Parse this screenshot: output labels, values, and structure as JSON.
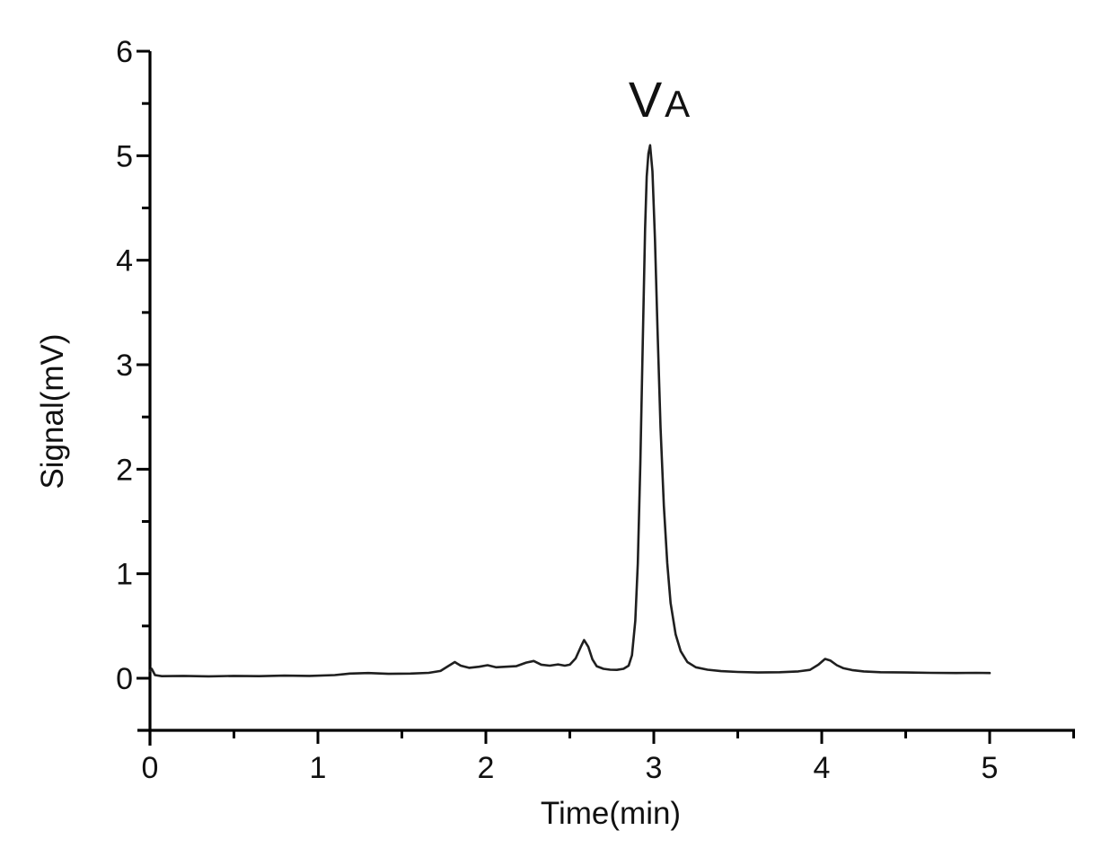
{
  "figure": {
    "background": "#ffffff"
  },
  "chart_data": {
    "type": "line",
    "title": "",
    "xlabel": "Time(min)",
    "ylabel": "Signal(mV)",
    "xlim": [
      0,
      5.5
    ],
    "ylim": [
      -0.5,
      6
    ],
    "grid": false,
    "legend": null,
    "line_color": "#1f1f1f",
    "axis_color": "#000000",
    "x_major_ticks": [
      0,
      1,
      2,
      3,
      4,
      5
    ],
    "x_minor_ticks": [
      0.5,
      1.5,
      2.5,
      3.5,
      4.5,
      5.5
    ],
    "y_major_ticks": [
      0,
      1,
      2,
      3,
      4,
      5,
      6
    ],
    "y_minor_ticks": [
      0.5,
      1.5,
      2.5,
      3.5,
      4.5,
      5.5
    ],
    "annotation": {
      "text_large": "V",
      "text_small": "A",
      "at_time_min": 3.0
    },
    "peaks": [
      {
        "time_min": 1.8,
        "height_mV": 0.16
      },
      {
        "time_min": 2.3,
        "height_mV": 0.17
      },
      {
        "time_min": 2.6,
        "height_mV": 0.37
      },
      {
        "time_min": 3.0,
        "height_mV": 5.1,
        "label": "VA"
      },
      {
        "time_min": 4.0,
        "height_mV": 0.19
      }
    ],
    "series": [
      {
        "name": "Signal",
        "points": [
          [
            0.0,
            0.07
          ],
          [
            0.01,
            0.09
          ],
          [
            0.03,
            0.03
          ],
          [
            0.07,
            0.02
          ],
          [
            0.2,
            0.022
          ],
          [
            0.35,
            0.018
          ],
          [
            0.5,
            0.022
          ],
          [
            0.65,
            0.02
          ],
          [
            0.8,
            0.025
          ],
          [
            0.95,
            0.022
          ],
          [
            1.1,
            0.03
          ],
          [
            1.19,
            0.045
          ],
          [
            1.3,
            0.05
          ],
          [
            1.42,
            0.042
          ],
          [
            1.55,
            0.045
          ],
          [
            1.66,
            0.052
          ],
          [
            1.73,
            0.07
          ],
          [
            1.78,
            0.12
          ],
          [
            1.815,
            0.155
          ],
          [
            1.85,
            0.12
          ],
          [
            1.9,
            0.1
          ],
          [
            1.96,
            0.11
          ],
          [
            2.01,
            0.125
          ],
          [
            2.06,
            0.105
          ],
          [
            2.12,
            0.11
          ],
          [
            2.18,
            0.115
          ],
          [
            2.24,
            0.15
          ],
          [
            2.285,
            0.165
          ],
          [
            2.33,
            0.13
          ],
          [
            2.38,
            0.12
          ],
          [
            2.43,
            0.132
          ],
          [
            2.47,
            0.12
          ],
          [
            2.5,
            0.13
          ],
          [
            2.535,
            0.19
          ],
          [
            2.565,
            0.3
          ],
          [
            2.585,
            0.365
          ],
          [
            2.61,
            0.3
          ],
          [
            2.635,
            0.18
          ],
          [
            2.66,
            0.115
          ],
          [
            2.7,
            0.09
          ],
          [
            2.74,
            0.082
          ],
          [
            2.78,
            0.08
          ],
          [
            2.82,
            0.09
          ],
          [
            2.85,
            0.12
          ],
          [
            2.87,
            0.22
          ],
          [
            2.89,
            0.55
          ],
          [
            2.905,
            1.1
          ],
          [
            2.92,
            2.05
          ],
          [
            2.935,
            3.25
          ],
          [
            2.948,
            4.3
          ],
          [
            2.958,
            4.8
          ],
          [
            2.968,
            5.02
          ],
          [
            2.978,
            5.1
          ],
          [
            2.992,
            4.85
          ],
          [
            3.007,
            4.2
          ],
          [
            3.022,
            3.35
          ],
          [
            3.04,
            2.4
          ],
          [
            3.06,
            1.65
          ],
          [
            3.08,
            1.1
          ],
          [
            3.1,
            0.72
          ],
          [
            3.13,
            0.42
          ],
          [
            3.16,
            0.26
          ],
          [
            3.2,
            0.155
          ],
          [
            3.25,
            0.105
          ],
          [
            3.32,
            0.082
          ],
          [
            3.4,
            0.068
          ],
          [
            3.5,
            0.06
          ],
          [
            3.62,
            0.055
          ],
          [
            3.75,
            0.058
          ],
          [
            3.86,
            0.065
          ],
          [
            3.93,
            0.08
          ],
          [
            3.98,
            0.13
          ],
          [
            4.02,
            0.185
          ],
          [
            4.05,
            0.17
          ],
          [
            4.09,
            0.125
          ],
          [
            4.13,
            0.095
          ],
          [
            4.18,
            0.078
          ],
          [
            4.25,
            0.065
          ],
          [
            4.35,
            0.058
          ],
          [
            4.5,
            0.055
          ],
          [
            4.65,
            0.052
          ],
          [
            4.8,
            0.05
          ],
          [
            4.92,
            0.052
          ],
          [
            5.0,
            0.05
          ]
        ]
      }
    ]
  }
}
